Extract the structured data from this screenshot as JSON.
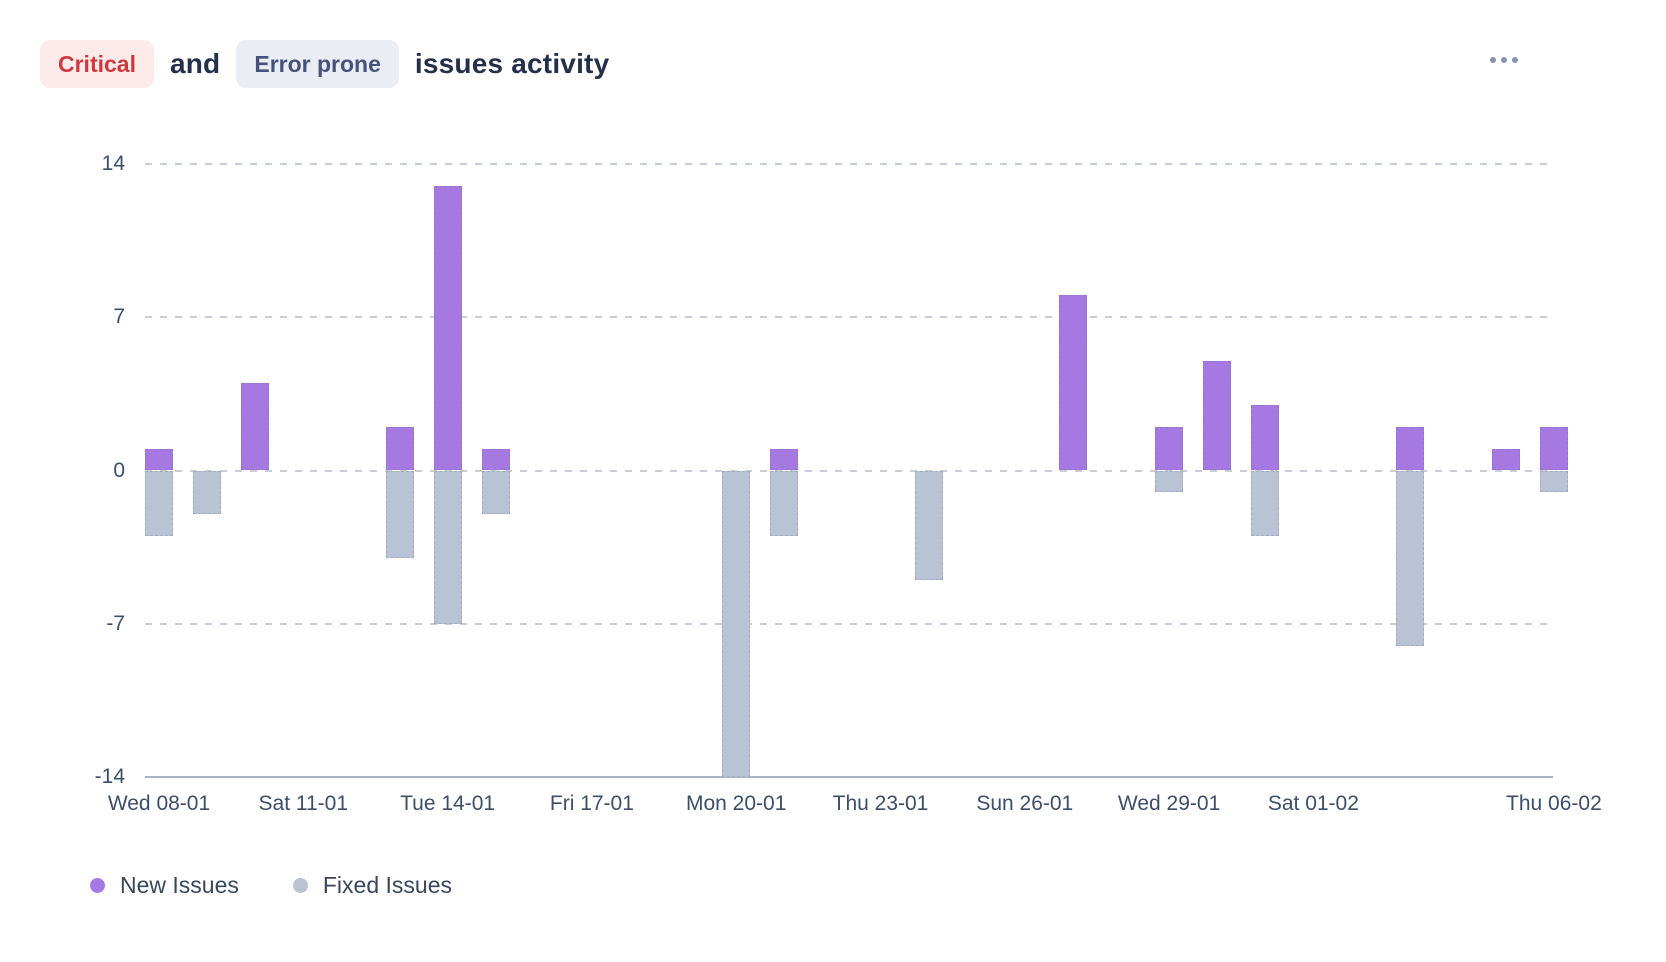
{
  "header": {
    "badge_critical": "Critical",
    "connector": "and",
    "badge_error_prone": "Error prone",
    "title_suffix": "issues activity",
    "icons": {
      "more_menu": "ellipsis-horizontal-icon"
    }
  },
  "colors": {
    "new_issues": "#a678e2",
    "fixed_issues": "#b9c3d4",
    "critical_badge_bg": "#fcebe9",
    "critical_badge_text": "#cc3a40",
    "error_prone_badge_bg": "#eaedf4",
    "error_prone_badge_text": "#46527b",
    "gridline": "#c9cdd8",
    "axis_line": "#a9b3c6",
    "axis_text": "#3d4e69"
  },
  "chart_data": {
    "type": "bar",
    "title": "Critical and Error prone issues activity",
    "ylim": [
      -14,
      14
    ],
    "y_ticks": [
      14,
      7,
      0,
      -7,
      -14
    ],
    "grid": "horizontal dashed",
    "legend_position": "bottom-left",
    "x_days_total": 30,
    "x_tick_labels": [
      {
        "day": 1,
        "label": "Wed 08-01"
      },
      {
        "day": 4,
        "label": "Sat 11-01"
      },
      {
        "day": 7,
        "label": "Tue 14-01"
      },
      {
        "day": 10,
        "label": "Fri 17-01"
      },
      {
        "day": 13,
        "label": "Mon 20-01"
      },
      {
        "day": 16,
        "label": "Thu 23-01"
      },
      {
        "day": 19,
        "label": "Sun 26-01"
      },
      {
        "day": 22,
        "label": "Wed 29-01"
      },
      {
        "day": 25,
        "label": "Sat 01-02"
      },
      {
        "day": 30,
        "label": "Thu 06-02"
      }
    ],
    "series": [
      {
        "name": "New Issues",
        "color": "#a678e2",
        "direction": "up"
      },
      {
        "name": "Fixed Issues",
        "color": "#b9c3d4",
        "direction": "down"
      }
    ],
    "bars": [
      {
        "day": 1,
        "date": "Wed 08-01",
        "new_issues": 1,
        "fixed_issues": -3
      },
      {
        "day": 2,
        "date": "Thu 09-01",
        "new_issues": 0,
        "fixed_issues": -2
      },
      {
        "day": 3,
        "date": "Fri 10-01",
        "new_issues": 4,
        "fixed_issues": 0
      },
      {
        "day": 6,
        "date": "Mon 13-01",
        "new_issues": 2,
        "fixed_issues": -4
      },
      {
        "day": 7,
        "date": "Tue 14-01",
        "new_issues": 13,
        "fixed_issues": -7
      },
      {
        "day": 8,
        "date": "Wed 15-01",
        "new_issues": 1,
        "fixed_issues": -2
      },
      {
        "day": 13,
        "date": "Mon 20-01",
        "new_issues": 0,
        "fixed_issues": -14
      },
      {
        "day": 14,
        "date": "Tue 21-01",
        "new_issues": 1,
        "fixed_issues": -3
      },
      {
        "day": 17,
        "date": "Fri 24-01",
        "new_issues": 0,
        "fixed_issues": -5
      },
      {
        "day": 20,
        "date": "Mon 27-01",
        "new_issues": 8,
        "fixed_issues": 0
      },
      {
        "day": 22,
        "date": "Wed 29-01",
        "new_issues": 2,
        "fixed_issues": -1
      },
      {
        "day": 23,
        "date": "Thu 30-01",
        "new_issues": 5,
        "fixed_issues": 0
      },
      {
        "day": 24,
        "date": "Fri 31-01",
        "new_issues": 3,
        "fixed_issues": -3
      },
      {
        "day": 27,
        "date": "Mon 03-02",
        "new_issues": 2,
        "fixed_issues": -8
      },
      {
        "day": 29,
        "date": "Wed 05-02",
        "new_issues": 1,
        "fixed_issues": 0
      },
      {
        "day": 30,
        "date": "Thu 06-02",
        "new_issues": 2,
        "fixed_issues": -1
      }
    ]
  }
}
